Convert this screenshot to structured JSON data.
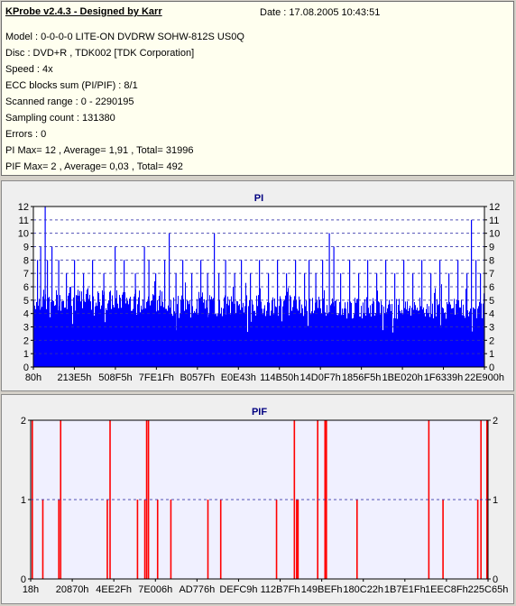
{
  "info": {
    "title": "KProbe v2.4.3 - Designed by Karr",
    "date": "Date : 17.08.2005 10:43:51",
    "lines": [
      "Model : 0-0-0-0 LITE-ON DVDRW SOHW-812S  US0Q",
      "Disc : DVD+R , TDK002 [TDK Corporation]",
      "Speed : 4x",
      "ECC blocks sum (PI/PIF) : 8/1",
      "Scanned range : 0 - 2290195",
      "Sampling count : 131380",
      "Errors : 0",
      "PI Max= 12 , Average= 1,91 , Total= 31996",
      "PIF Max= 2 , Average= 0,03 , Total= 492"
    ]
  },
  "colors": {
    "pi_fill": "#0000ff",
    "pif_fill": "#ff0000",
    "title_blue": "#000080",
    "grid": "#3333aa",
    "plot_bg_pif": "#f0f0ff"
  },
  "chart_data": [
    {
      "type": "bar",
      "title": "PI",
      "ylim": [
        0,
        12
      ],
      "yticks": [
        "0",
        "1",
        "2",
        "3",
        "4",
        "5",
        "6",
        "7",
        "8",
        "9",
        "10",
        "11",
        "12"
      ],
      "xticks": [
        "80h",
        "213E5h",
        "508F5h",
        "7FE1Fh",
        "B057Fh",
        "E0E43h",
        "114B50h",
        "14D0F7h",
        "1856F5h",
        "1BE020h",
        "1F6339h",
        "22E900h"
      ],
      "grid": true,
      "base_level_sections": [
        {
          "from": 0.0,
          "to": 0.3,
          "value": 5
        },
        {
          "from": 0.3,
          "to": 0.68,
          "value": 4.6
        },
        {
          "from": 0.68,
          "to": 1.0,
          "value": 4.4
        }
      ],
      "peaks": [
        {
          "pos": 0.008,
          "value": 8
        },
        {
          "pos": 0.015,
          "value": 9
        },
        {
          "pos": 0.025,
          "value": 12
        },
        {
          "pos": 0.03,
          "value": 8
        },
        {
          "pos": 0.04,
          "value": 9
        },
        {
          "pos": 0.055,
          "value": 8
        },
        {
          "pos": 0.072,
          "value": 7
        },
        {
          "pos": 0.09,
          "value": 8
        },
        {
          "pos": 0.11,
          "value": 7
        },
        {
          "pos": 0.13,
          "value": 8
        },
        {
          "pos": 0.155,
          "value": 7
        },
        {
          "pos": 0.18,
          "value": 9
        },
        {
          "pos": 0.2,
          "value": 8
        },
        {
          "pos": 0.225,
          "value": 7
        },
        {
          "pos": 0.245,
          "value": 9
        },
        {
          "pos": 0.255,
          "value": 8
        },
        {
          "pos": 0.27,
          "value": 7
        },
        {
          "pos": 0.29,
          "value": 8
        },
        {
          "pos": 0.3,
          "value": 10
        },
        {
          "pos": 0.315,
          "value": 7
        },
        {
          "pos": 0.33,
          "value": 8
        },
        {
          "pos": 0.35,
          "value": 7
        },
        {
          "pos": 0.37,
          "value": 8
        },
        {
          "pos": 0.385,
          "value": 7
        },
        {
          "pos": 0.4,
          "value": 10
        },
        {
          "pos": 0.41,
          "value": 7
        },
        {
          "pos": 0.425,
          "value": 8
        },
        {
          "pos": 0.445,
          "value": 7
        },
        {
          "pos": 0.46,
          "value": 8
        },
        {
          "pos": 0.48,
          "value": 7
        },
        {
          "pos": 0.5,
          "value": 8
        },
        {
          "pos": 0.52,
          "value": 7
        },
        {
          "pos": 0.54,
          "value": 8
        },
        {
          "pos": 0.56,
          "value": 7
        },
        {
          "pos": 0.58,
          "value": 8
        },
        {
          "pos": 0.6,
          "value": 7
        },
        {
          "pos": 0.61,
          "value": 8
        },
        {
          "pos": 0.625,
          "value": 7
        },
        {
          "pos": 0.64,
          "value": 8
        },
        {
          "pos": 0.655,
          "value": 10
        },
        {
          "pos": 0.665,
          "value": 9
        },
        {
          "pos": 0.68,
          "value": 7
        },
        {
          "pos": 0.7,
          "value": 8
        },
        {
          "pos": 0.72,
          "value": 7
        },
        {
          "pos": 0.74,
          "value": 8
        },
        {
          "pos": 0.76,
          "value": 7
        },
        {
          "pos": 0.78,
          "value": 8
        },
        {
          "pos": 0.8,
          "value": 7
        },
        {
          "pos": 0.82,
          "value": 8
        },
        {
          "pos": 0.84,
          "value": 7
        },
        {
          "pos": 0.86,
          "value": 8
        },
        {
          "pos": 0.88,
          "value": 7
        },
        {
          "pos": 0.9,
          "value": 8
        },
        {
          "pos": 0.92,
          "value": 7
        },
        {
          "pos": 0.94,
          "value": 8
        },
        {
          "pos": 0.96,
          "value": 7
        },
        {
          "pos": 0.97,
          "value": 11
        },
        {
          "pos": 0.98,
          "value": 8
        },
        {
          "pos": 0.99,
          "value": 7
        }
      ]
    },
    {
      "type": "bar",
      "title": "PIF",
      "ylim": [
        0,
        2
      ],
      "yticks": [
        "0",
        "1",
        "2"
      ],
      "xticks": [
        "18h",
        "20870h",
        "4EE2Fh",
        "7E006h",
        "AD776h",
        "DEFC9h",
        "112B7Fh",
        "149BEFh",
        "180C22h",
        "1B7E1Fh",
        "1EEC8Fh",
        "225C65h"
      ],
      "grid": true,
      "bars": [
        {
          "pos": 0.002,
          "value": 2
        },
        {
          "pos": 0.025,
          "value": 1
        },
        {
          "pos": 0.06,
          "value": 1
        },
        {
          "pos": 0.064,
          "value": 2
        },
        {
          "pos": 0.166,
          "value": 1
        },
        {
          "pos": 0.172,
          "value": 2
        },
        {
          "pos": 0.232,
          "value": 1
        },
        {
          "pos": 0.248,
          "value": 1
        },
        {
          "pos": 0.252,
          "value": 2
        },
        {
          "pos": 0.256,
          "value": 2
        },
        {
          "pos": 0.276,
          "value": 1
        },
        {
          "pos": 0.305,
          "value": 1
        },
        {
          "pos": 0.386,
          "value": 1
        },
        {
          "pos": 0.414,
          "value": 1
        },
        {
          "pos": 0.536,
          "value": 1
        },
        {
          "pos": 0.575,
          "value": 2
        },
        {
          "pos": 0.58,
          "value": 1
        },
        {
          "pos": 0.583,
          "value": 1
        },
        {
          "pos": 0.626,
          "value": 2
        },
        {
          "pos": 0.642,
          "value": 2
        },
        {
          "pos": 0.645,
          "value": 2
        },
        {
          "pos": 0.712,
          "value": 1
        },
        {
          "pos": 0.869,
          "value": 2
        },
        {
          "pos": 0.9,
          "value": 1
        },
        {
          "pos": 0.976,
          "value": 1
        },
        {
          "pos": 0.983,
          "value": 2
        },
        {
          "pos": 0.996,
          "value": 2
        }
      ]
    }
  ]
}
